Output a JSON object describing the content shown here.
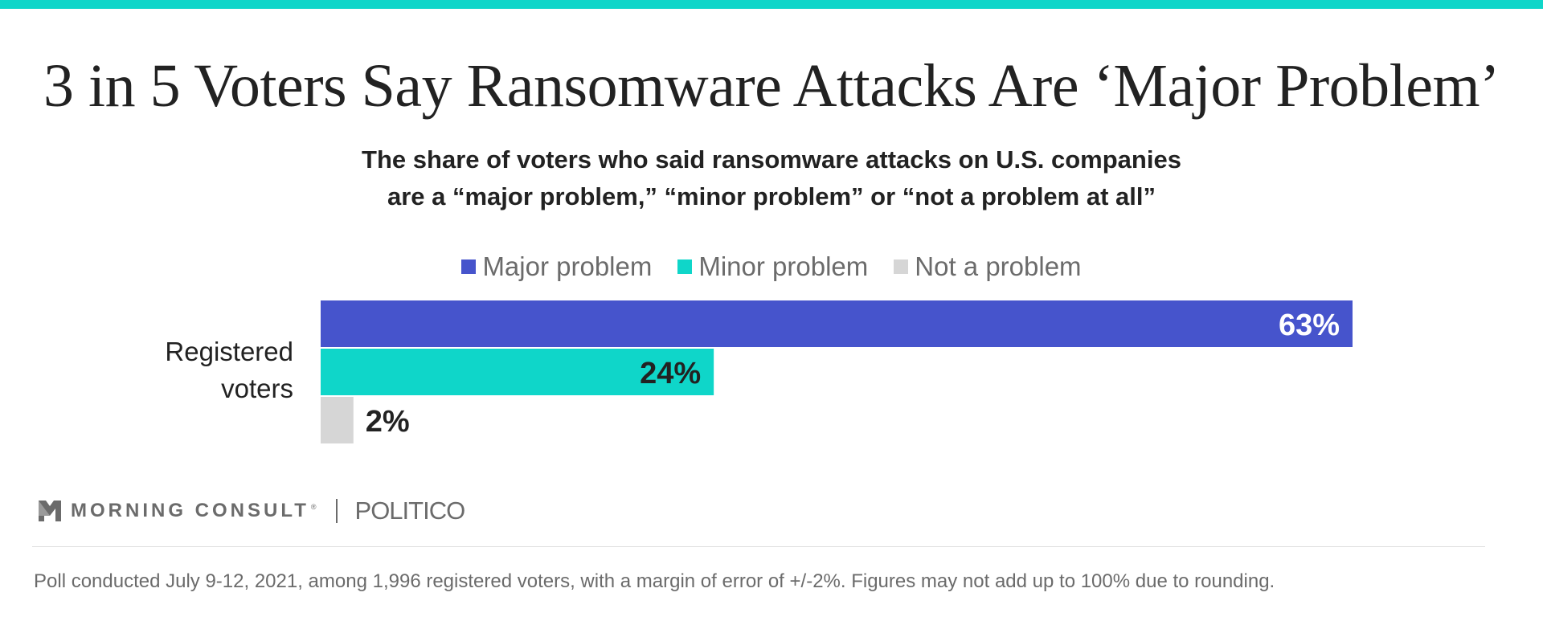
{
  "colors": {
    "accent_bar": "#0fd6c9",
    "major": "#4654cc",
    "minor": "#0fd6c9",
    "not": "#d6d6d6",
    "text": "#222222",
    "muted": "#6b6b6b"
  },
  "title": "3 in 5 Voters Say Ransomware Attacks Are ‘Major Problem’",
  "subtitle": {
    "line1": "The share of voters who said ransomware attacks on U.S. companies",
    "line2": "are a “major problem,” “minor problem” or “not a problem at all”"
  },
  "legend": [
    {
      "label": "Major problem"
    },
    {
      "label": "Minor problem"
    },
    {
      "label": "Not a problem"
    }
  ],
  "category_label": {
    "line1": "Registered",
    "line2": "voters"
  },
  "chart_data": {
    "type": "bar",
    "orientation": "horizontal",
    "categories": [
      "Registered voters"
    ],
    "series": [
      {
        "name": "Major problem",
        "values": [
          63
        ],
        "label": "63%",
        "color": "#4654cc",
        "label_color": "#ffffff",
        "label_position": "inside-end"
      },
      {
        "name": "Minor problem",
        "values": [
          24
        ],
        "label": "24%",
        "color": "#0fd6c9",
        "label_color": "#222222",
        "label_position": "inside-end"
      },
      {
        "name": "Not a problem",
        "values": [
          2
        ],
        "label": "2%",
        "color": "#d6d6d6",
        "label_color": "#222222",
        "label_position": "outside-end"
      }
    ],
    "xlim": [
      0,
      100
    ],
    "grid": false,
    "legend_position": "top-center"
  },
  "branding": {
    "morning_consult": "MORNING CONSULT",
    "registered_mark": "®",
    "politico": "POLITICO"
  },
  "footnote": "Poll conducted July 9-12, 2021, among 1,996 registered voters, with a margin of error of +/-2%. Figures may not add up to 100% due to rounding."
}
